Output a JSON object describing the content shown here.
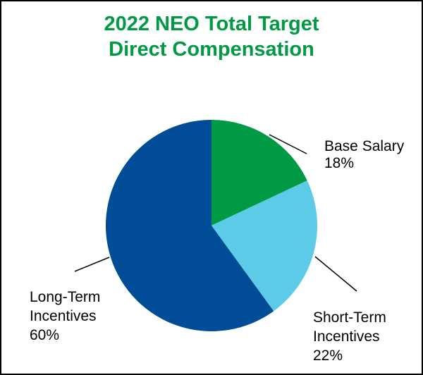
{
  "chart_data": {
    "type": "pie",
    "title": [
      "2022 NEO Total Target",
      "Direct Compensation"
    ],
    "slices": [
      {
        "label": [
          "Base Salary"
        ],
        "value_label": "18%",
        "value": 18,
        "color": "#009a44"
      },
      {
        "label": [
          "Short-Term",
          "Incentives"
        ],
        "value_label": "22%",
        "value": 22,
        "color": "#5bcbe8"
      },
      {
        "label": [
          "Long-Term",
          "Incentives"
        ],
        "value_label": "60%",
        "value": 60,
        "color": "#004c97"
      }
    ],
    "start_angle_deg": 0,
    "direction": "clockwise",
    "legend": "none"
  }
}
